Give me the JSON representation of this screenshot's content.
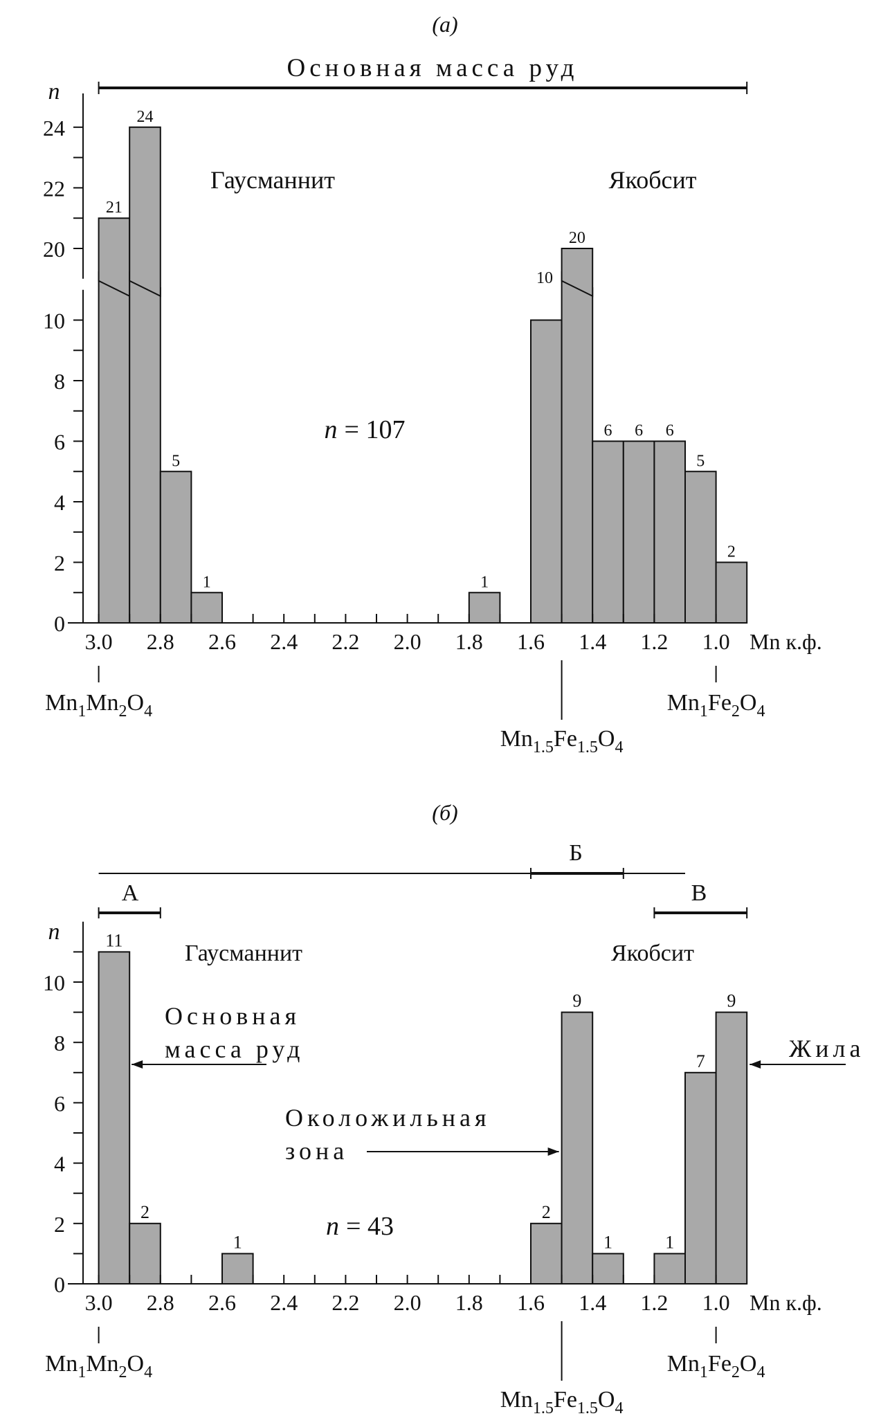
{
  "chart_data": [
    {
      "type": "bar",
      "panel_label": "(а)",
      "ylabel": "n",
      "xlabel": "Mn к.ф.",
      "x_ticks": [
        "3.0",
        "2.8",
        "2.6",
        "2.4",
        "2.2",
        "2.0",
        "1.8",
        "1.6",
        "1.4",
        "1.2",
        "1.0"
      ],
      "y_ticks_lower": [
        "0",
        "2",
        "4",
        "6",
        "8",
        "10"
      ],
      "y_ticks_upper": [
        "20",
        "22",
        "24"
      ],
      "xlim": [
        3.1,
        0.9
      ],
      "axis_break": [
        11,
        19
      ],
      "bin_width": 0.1,
      "bars": [
        {
          "x_from": 3.0,
          "x_to": 2.9,
          "value": 21,
          "label": "21"
        },
        {
          "x_from": 2.9,
          "x_to": 2.8,
          "value": 24,
          "label": "24"
        },
        {
          "x_from": 2.8,
          "x_to": 2.7,
          "value": 5,
          "label": "5"
        },
        {
          "x_from": 2.7,
          "x_to": 2.6,
          "value": 1,
          "label": "1"
        },
        {
          "x_from": 1.8,
          "x_to": 1.7,
          "value": 1,
          "label": "1"
        },
        {
          "x_from": 1.6,
          "x_to": 1.5,
          "value": 10,
          "label": "10"
        },
        {
          "x_from": 1.5,
          "x_to": 1.4,
          "value": 20,
          "label": "20"
        },
        {
          "x_from": 1.4,
          "x_to": 1.3,
          "value": 6,
          "label": "6"
        },
        {
          "x_from": 1.3,
          "x_to": 1.2,
          "value": 6,
          "label": "6"
        },
        {
          "x_from": 1.2,
          "x_to": 1.1,
          "value": 6,
          "label": "6"
        },
        {
          "x_from": 1.1,
          "x_to": 1.0,
          "value": 5,
          "label": "5"
        },
        {
          "x_from": 1.0,
          "x_to": 0.9,
          "value": 2,
          "label": "2"
        }
      ],
      "annotations": {
        "top_range_label": "Основная масса руд",
        "top_range": [
          3.0,
          0.9
        ],
        "left_mineral": "Гаусманнит",
        "right_mineral": "Якобсит",
        "n_total_prefix": "n",
        "n_total_value": "= 107"
      },
      "formulas": [
        {
          "x": 3.0,
          "parts": [
            [
              "Mn",
              ""
            ],
            [
              "1",
              "sub"
            ],
            [
              "Mn",
              ""
            ],
            [
              "2",
              "sub"
            ],
            [
              "O",
              ""
            ],
            [
              "4",
              "sub"
            ]
          ]
        },
        {
          "x": 1.5,
          "parts": [
            [
              "Mn",
              ""
            ],
            [
              "1.5",
              "sub"
            ],
            [
              "Fe",
              ""
            ],
            [
              "1.5",
              "sub"
            ],
            [
              "O",
              ""
            ],
            [
              "4",
              "sub"
            ]
          ]
        },
        {
          "x": 1.0,
          "parts": [
            [
              "Mn",
              ""
            ],
            [
              "1",
              "sub"
            ],
            [
              "Fe",
              ""
            ],
            [
              "2",
              "sub"
            ],
            [
              "O",
              ""
            ],
            [
              "4",
              "sub"
            ]
          ]
        }
      ]
    },
    {
      "type": "bar",
      "panel_label": "(б)",
      "ylabel": "n",
      "xlabel": "Mn к.ф.",
      "x_ticks": [
        "3.0",
        "2.8",
        "2.6",
        "2.4",
        "2.2",
        "2.0",
        "1.8",
        "1.6",
        "1.4",
        "1.2",
        "1.0"
      ],
      "y_ticks": [
        "0",
        "2",
        "4",
        "6",
        "8",
        "10"
      ],
      "xlim": [
        3.1,
        0.9
      ],
      "bin_width": 0.1,
      "bars": [
        {
          "x_from": 3.0,
          "x_to": 2.9,
          "value": 11,
          "label": "11"
        },
        {
          "x_from": 2.9,
          "x_to": 2.8,
          "value": 2,
          "label": "2"
        },
        {
          "x_from": 2.6,
          "x_to": 2.5,
          "value": 1,
          "label": "1"
        },
        {
          "x_from": 1.6,
          "x_to": 1.5,
          "value": 2,
          "label": "2"
        },
        {
          "x_from": 1.5,
          "x_to": 1.4,
          "value": 9,
          "label": "9"
        },
        {
          "x_from": 1.4,
          "x_to": 1.3,
          "value": 1,
          "label": "1"
        },
        {
          "x_from": 1.2,
          "x_to": 1.1,
          "value": 1,
          "label": "1"
        },
        {
          "x_from": 1.1,
          "x_to": 1.0,
          "value": 7,
          "label": "7"
        },
        {
          "x_from": 1.0,
          "x_to": 0.9,
          "value": 9,
          "label": "9"
        }
      ],
      "annotations": {
        "left_mineral": "Гаусманнит",
        "right_mineral": "Якобсит",
        "n_total_prefix": "n",
        "n_total_value": "= 43",
        "main_mass_line1": "Основная",
        "main_mass_line2": "масса руд",
        "near_vein_line1": "Околожильная",
        "near_vein_line2": "зона",
        "vein": "Жила",
        "overall_range": [
          3.0,
          1.1
        ],
        "range_A_label": "А",
        "range_A": [
          3.0,
          2.8
        ],
        "range_B_label": "Б",
        "range_B": [
          1.6,
          1.3
        ],
        "range_V_label": "В",
        "range_V": [
          1.2,
          0.9
        ]
      },
      "formulas": [
        {
          "x": 3.0,
          "parts": [
            [
              "Mn",
              ""
            ],
            [
              "1",
              "sub"
            ],
            [
              "Mn",
              ""
            ],
            [
              "2",
              "sub"
            ],
            [
              "O",
              ""
            ],
            [
              "4",
              "sub"
            ]
          ]
        },
        {
          "x": 1.5,
          "parts": [
            [
              "Mn",
              ""
            ],
            [
              "1.5",
              "sub"
            ],
            [
              "Fe",
              ""
            ],
            [
              "1.5",
              "sub"
            ],
            [
              "O",
              ""
            ],
            [
              "4",
              "sub"
            ]
          ]
        },
        {
          "x": 1.0,
          "parts": [
            [
              "Mn",
              ""
            ],
            [
              "1",
              "sub"
            ],
            [
              "Fe",
              ""
            ],
            [
              "2",
              "sub"
            ],
            [
              "O",
              ""
            ],
            [
              "4",
              "sub"
            ]
          ]
        }
      ]
    }
  ]
}
